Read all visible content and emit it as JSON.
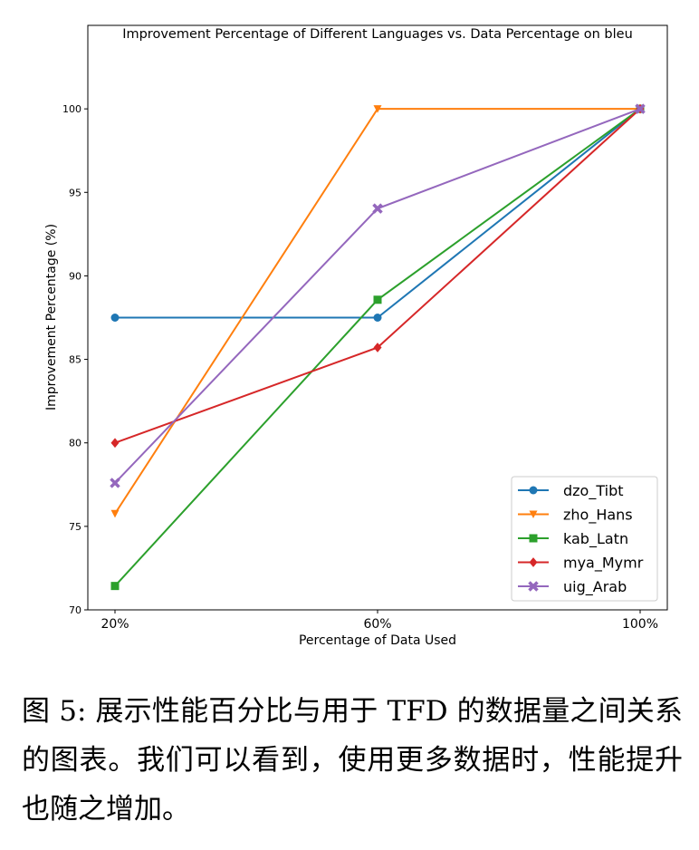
{
  "chart_data": {
    "type": "line",
    "title": "Improvement Percentage of Different Languages vs. Data Percentage on bleu",
    "xlabel": "Percentage of Data Used",
    "ylabel": "Improvement Percentage (%)",
    "categories": [
      "20%",
      "60%",
      "100%"
    ],
    "ylim": [
      70,
      105
    ],
    "yticks": [
      70,
      75,
      80,
      85,
      90,
      95,
      100
    ],
    "grid": false,
    "legend_position": "bottom-right",
    "series": [
      {
        "name": "dzo_Tibt",
        "color": "#1f77b4",
        "marker": "circle",
        "values": [
          87.5,
          87.5,
          100
        ]
      },
      {
        "name": "zho_Hans",
        "color": "#ff7f0e",
        "marker": "triangle-down",
        "values": [
          75.76,
          100,
          100
        ]
      },
      {
        "name": "kab_Latn",
        "color": "#2ca02c",
        "marker": "square",
        "values": [
          71.43,
          88.57,
          100
        ]
      },
      {
        "name": "mya_Mymr",
        "color": "#d62728",
        "marker": "diamond",
        "values": [
          80,
          85.71,
          100
        ]
      },
      {
        "name": "uig_Arab",
        "color": "#9467bd",
        "marker": "x",
        "values": [
          77.6,
          94.03,
          100
        ]
      }
    ]
  },
  "caption": "图 5: 展示性能百分比与用于 TFD 的数据量之间关系的图表。我们可以看到，使用更多数据时，性能提升也随之增加。"
}
